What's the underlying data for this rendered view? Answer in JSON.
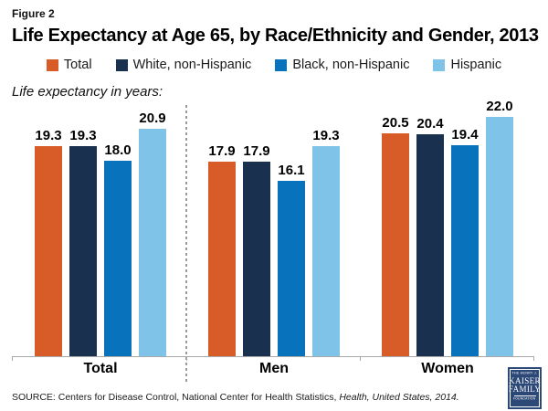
{
  "figure": {
    "label": "Figure 2",
    "title": "Life Expectancy at Age 65, by Race/Ethnicity and Gender, 2013",
    "axis_note": "Life expectancy in years:"
  },
  "chart_data": {
    "type": "bar",
    "title": "Life Expectancy at Age 65, by Race/Ethnicity and Gender, 2013",
    "xlabel": "",
    "ylabel": "Life expectancy in years",
    "categories": [
      "Total",
      "Men",
      "Women"
    ],
    "series": [
      {
        "name": "Total",
        "color": "#D85C27",
        "values": [
          19.3,
          17.9,
          20.5
        ]
      },
      {
        "name": "White, non-Hispanic",
        "color": "#19314F",
        "values": [
          19.3,
          17.9,
          20.4
        ]
      },
      {
        "name": "Black, non-Hispanic",
        "color": "#0873BC",
        "values": [
          18.0,
          16.1,
          19.4
        ]
      },
      {
        "name": "Hispanic",
        "color": "#7FC3E8",
        "values": [
          20.9,
          19.3,
          22.0
        ]
      }
    ],
    "ylim": [
      0,
      23.5
    ],
    "grid": false,
    "legend_position": "top",
    "value_labels": true,
    "divider_after_category": "Total"
  },
  "source": {
    "prefix": "SOURCE: Centers for Disease Control, National Center for Health Statistics, ",
    "citation_italic": "Health, United States, 2014."
  },
  "logo": {
    "line1": "THE HENRY J.",
    "line2": "KAISER",
    "line3": "FAMILY",
    "line4": "FOUNDATION",
    "color": "#2b4877"
  }
}
